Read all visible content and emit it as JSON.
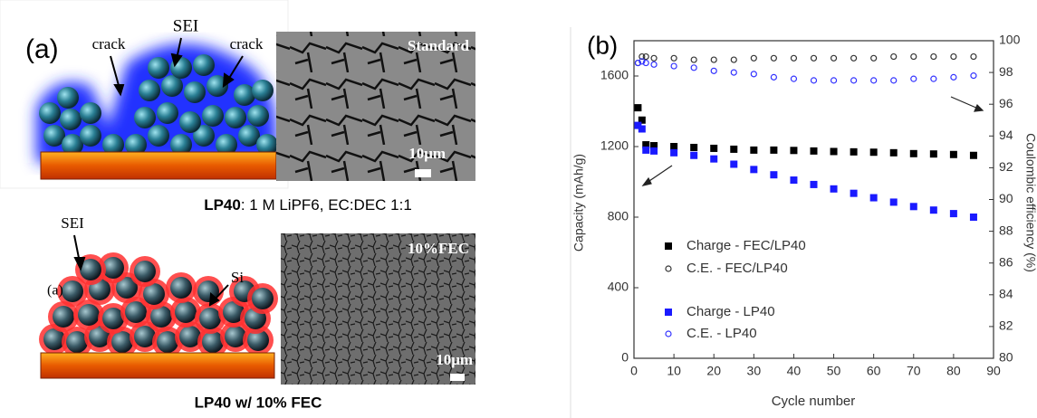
{
  "panel_a": {
    "label": "(a)",
    "top": {
      "crack_left": "crack",
      "sei": "SEI",
      "crack_right": "crack",
      "sem_label": "Standard",
      "scale": "10μm",
      "caption_bold": "LP40",
      "caption_rest": ": 1 M LiPF6, EC:DEC 1:1"
    },
    "bottom": {
      "sei": "SEI",
      "si": "Si",
      "inner_label": "(a)",
      "sem_label": "10%FEC",
      "scale": "10μm",
      "caption": "LP40 w/ 10% FEC"
    }
  },
  "chart_data": {
    "type": "scatter",
    "panel_label": "(b)",
    "x_label": "Cycle number",
    "y_label": "Capacity (mAh/g)",
    "y2_label": "Coulombic efficiency (%)",
    "x": [
      1,
      2,
      3,
      5,
      10,
      15,
      20,
      25,
      30,
      35,
      40,
      45,
      50,
      55,
      60,
      65,
      70,
      75,
      80,
      85
    ],
    "xlim": [
      0,
      90
    ],
    "xticks": [
      0,
      10,
      20,
      30,
      40,
      50,
      60,
      70,
      80,
      90
    ],
    "ylim": [
      0,
      1800
    ],
    "yticks": [
      0,
      400,
      800,
      1200,
      1600
    ],
    "y2lim": [
      80,
      100
    ],
    "y2ticks": [
      80,
      82,
      84,
      86,
      88,
      90,
      92,
      94,
      96,
      98,
      100
    ],
    "series": [
      {
        "name": "Charge - FEC/LP40",
        "color": "#000000",
        "marker": "square",
        "filled": true,
        "values": [
          1420,
          1350,
          1210,
          1205,
          1200,
          1195,
          1190,
          1185,
          1180,
          1180,
          1178,
          1175,
          1172,
          1170,
          1168,
          1165,
          1160,
          1158,
          1155,
          1150
        ]
      },
      {
        "name": "C.E. - FEC/LP40",
        "color": "#333333",
        "marker": "circle",
        "filled": false,
        "axis": "y2",
        "values": [
          98.6,
          99.0,
          99.0,
          98.9,
          98.9,
          98.8,
          98.8,
          98.8,
          98.9,
          98.9,
          98.9,
          98.9,
          98.9,
          98.9,
          98.9,
          99.0,
          99.0,
          99.0,
          99.0,
          99.0
        ]
      },
      {
        "name": "Charge - LP40",
        "color": "#1a1aff",
        "marker": "square",
        "filled": true,
        "values": [
          1320,
          1300,
          1180,
          1175,
          1165,
          1150,
          1130,
          1100,
          1070,
          1040,
          1010,
          985,
          960,
          935,
          910,
          885,
          860,
          840,
          820,
          800
        ]
      },
      {
        "name": "C.E. - LP40",
        "color": "#3333ff",
        "marker": "circle",
        "filled": false,
        "axis": "y2",
        "values": [
          98.6,
          98.7,
          98.6,
          98.5,
          98.4,
          98.3,
          98.1,
          98.0,
          97.9,
          97.7,
          97.6,
          97.5,
          97.5,
          97.5,
          97.5,
          97.5,
          97.6,
          97.6,
          97.7,
          97.8
        ]
      }
    ]
  }
}
